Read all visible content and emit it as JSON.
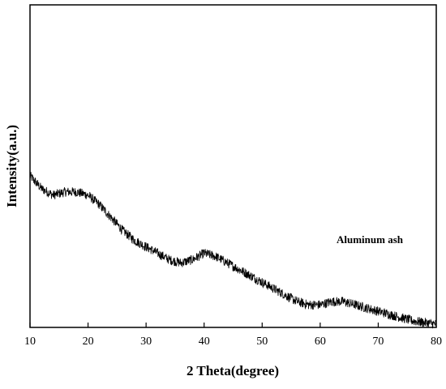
{
  "chart_data": {
    "type": "line",
    "xlabel": "2 Theta(degree)",
    "ylabel": "Intensity(a.u.)",
    "xlim": [
      10,
      80
    ],
    "xticks": [
      10,
      20,
      30,
      40,
      50,
      60,
      70,
      80
    ],
    "y_ticks_shown": false,
    "grid": false,
    "annotation": "Aluminum ash",
    "series": [
      {
        "color": "#000000",
        "x": [
          10,
          12,
          14,
          16,
          18,
          20,
          22,
          24,
          26,
          28,
          30,
          32,
          34,
          36,
          38,
          40,
          42,
          44,
          46,
          48,
          50,
          52,
          54,
          56,
          58,
          60,
          62,
          64,
          66,
          68,
          70,
          72,
          74,
          76,
          78,
          80
        ],
        "values": [
          0.47,
          0.43,
          0.41,
          0.42,
          0.42,
          0.41,
          0.38,
          0.34,
          0.3,
          0.27,
          0.25,
          0.23,
          0.21,
          0.2,
          0.21,
          0.23,
          0.22,
          0.2,
          0.18,
          0.16,
          0.14,
          0.12,
          0.1,
          0.08,
          0.07,
          0.07,
          0.08,
          0.08,
          0.07,
          0.06,
          0.05,
          0.04,
          0.03,
          0.02,
          0.015,
          0.01
        ]
      }
    ],
    "noise_amplitude": 0.03,
    "ylim": [
      0,
      1
    ]
  }
}
